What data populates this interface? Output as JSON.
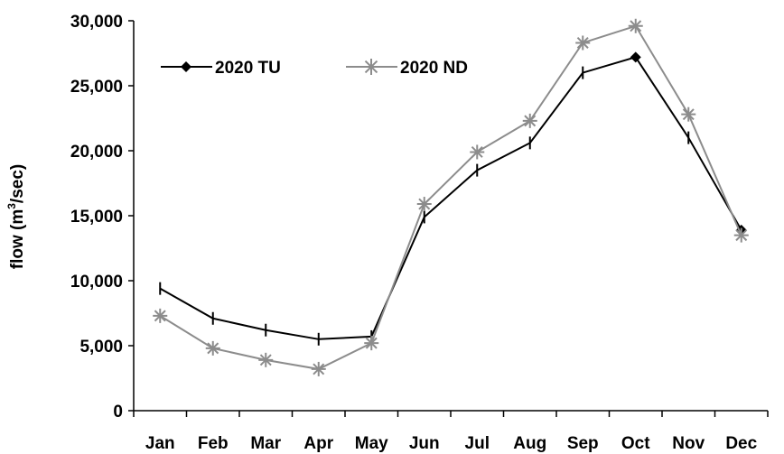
{
  "chart_data": {
    "type": "line",
    "title": "",
    "xlabel": "",
    "ylabel": "flow (m3/sec)",
    "ylabel_parts": {
      "pre": "flow (m",
      "sup": "3",
      "post": "/sec)"
    },
    "categories": [
      "Jan",
      "Feb",
      "Mar",
      "Apr",
      "May",
      "Jun",
      "Jul",
      "Aug",
      "Sep",
      "Oct",
      "Nov",
      "Dec"
    ],
    "ylim": [
      0,
      30000
    ],
    "yticks": [
      0,
      5000,
      10000,
      15000,
      20000,
      25000,
      30000
    ],
    "ytick_labels": [
      "0",
      "5,000",
      "10,000",
      "15,000",
      "20,000",
      "25,000",
      "30,000"
    ],
    "grid": false,
    "legend_position": "top-left",
    "series": [
      {
        "name": "2020 TU",
        "color": "#000000",
        "marker": "dash",
        "legend_marker": "diamond",
        "values": [
          9400,
          7100,
          6200,
          5500,
          5700,
          14900,
          18500,
          20600,
          26000,
          27200,
          21000,
          13900
        ]
      },
      {
        "name": "2020 ND",
        "color": "#8c8c8c",
        "marker": "star",
        "legend_marker": "star",
        "values": [
          7300,
          4800,
          3900,
          3200,
          5200,
          15900,
          19900,
          22300,
          28300,
          29600,
          22800,
          13500
        ]
      }
    ]
  }
}
